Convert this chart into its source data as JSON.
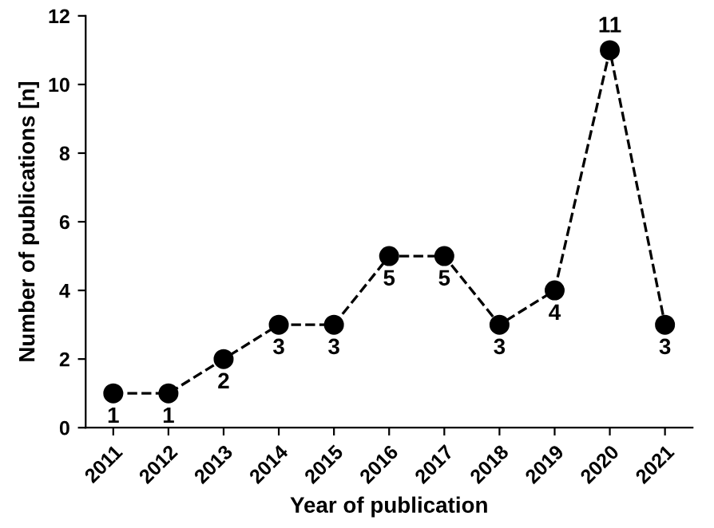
{
  "chart_data": {
    "type": "line",
    "xlabel": "Year of publication",
    "ylabel": "Number of publications [n]",
    "categories": [
      "2011",
      "2012",
      "2013",
      "2014",
      "2015",
      "2016",
      "2017",
      "2018",
      "2019",
      "2020",
      "2021"
    ],
    "values": [
      1,
      1,
      2,
      3,
      3,
      5,
      5,
      3,
      4,
      11,
      3
    ],
    "color": "#000000",
    "marker": "circle",
    "line_style": "dashed",
    "data_labels": true,
    "ylim": [
      0,
      12
    ],
    "yticks": [
      0,
      2,
      4,
      6,
      8,
      10,
      12
    ],
    "grid": false,
    "legend": false
  }
}
